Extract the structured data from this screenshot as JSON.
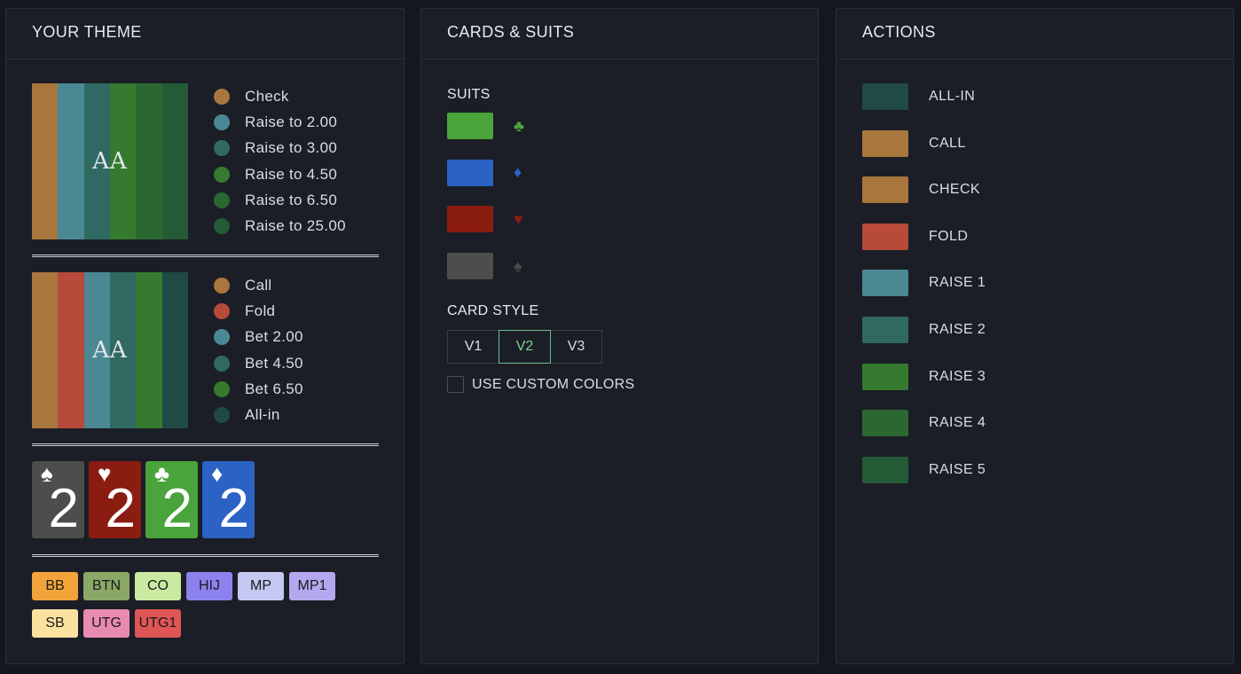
{
  "theme": {
    "title": "YOUR THEME",
    "hand_label": "AA",
    "legend1": [
      {
        "label": "Check",
        "color": "#a9763d"
      },
      {
        "label": "Raise to 2.00",
        "color": "#4a8894"
      },
      {
        "label": "Raise to 3.00",
        "color": "#2f6962"
      },
      {
        "label": "Raise to 4.50",
        "color": "#357a2e"
      },
      {
        "label": "Raise to 6.50",
        "color": "#2b6831"
      },
      {
        "label": "Raise to 25.00",
        "color": "#255a37"
      }
    ],
    "strip1": [
      "#a9763d",
      "#4a8894",
      "#2f6962",
      "#357a2e",
      "#2b6831",
      "#255a37"
    ],
    "legend2": [
      {
        "label": "Call",
        "color": "#a9763d"
      },
      {
        "label": "Fold",
        "color": "#b84a3a"
      },
      {
        "label": "Bet 2.00",
        "color": "#4a8894"
      },
      {
        "label": "Bet 4.50",
        "color": "#2f6962"
      },
      {
        "label": "Bet 6.50",
        "color": "#357a2e"
      },
      {
        "label": "All-in",
        "color": "#1f4a45"
      }
    ],
    "strip2": [
      "#a9763d",
      "#b84a3a",
      "#4a8894",
      "#2f6962",
      "#357a2e",
      "#1f4a45"
    ],
    "cards": [
      {
        "suit": "♠",
        "rank": "2",
        "color": "#4d4d4d",
        "icon": "spade-icon"
      },
      {
        "suit": "♥",
        "rank": "2",
        "color": "#8b1c12",
        "icon": "heart-icon"
      },
      {
        "suit": "♣",
        "rank": "2",
        "color": "#4aa43c",
        "icon": "club-icon"
      },
      {
        "suit": "♦",
        "rank": "2",
        "color": "#2b62c4",
        "icon": "diamond-icon"
      }
    ],
    "positions": [
      {
        "label": "BB",
        "color": "#f2a43a"
      },
      {
        "label": "BTN",
        "color": "#8aa866"
      },
      {
        "label": "CO",
        "color": "#c9eaa0"
      },
      {
        "label": "HIJ",
        "color": "#8b82ee"
      },
      {
        "label": "MP",
        "color": "#c5c8f3"
      },
      {
        "label": "MP1",
        "color": "#b5a7ee"
      },
      {
        "label": "SB",
        "color": "#fbe29f"
      },
      {
        "label": "UTG",
        "color": "#e98ab0"
      },
      {
        "label": "UTG1",
        "color": "#e05555"
      }
    ]
  },
  "cards_suits": {
    "title": "CARDS & SUITS",
    "suits_label": "SUITS",
    "suits": [
      {
        "glyph": "♣",
        "color": "#4aa43c",
        "icon": "club-icon"
      },
      {
        "glyph": "♦",
        "color": "#2b62c4",
        "icon": "diamond-icon"
      },
      {
        "glyph": "♥",
        "color": "#8b1c12",
        "icon": "heart-icon"
      },
      {
        "glyph": "♠",
        "color": "#4d4d4d",
        "icon": "spade-icon"
      }
    ],
    "card_style_label": "CARD STYLE",
    "card_styles": [
      "V1",
      "V2",
      "V3"
    ],
    "selected_style": "V2",
    "custom_colors_label": "USE CUSTOM COLORS",
    "custom_colors_checked": false
  },
  "actions": {
    "title": "ACTIONS",
    "items": [
      {
        "label": "ALL-IN",
        "color": "#1f4a45"
      },
      {
        "label": "CALL",
        "color": "#a9763d"
      },
      {
        "label": "CHECK",
        "color": "#a9763d"
      },
      {
        "label": "FOLD",
        "color": "#b84a3a"
      },
      {
        "label": "RAISE 1",
        "color": "#4a8894"
      },
      {
        "label": "RAISE 2",
        "color": "#2f6962"
      },
      {
        "label": "RAISE 3",
        "color": "#357a2e"
      },
      {
        "label": "RAISE 4",
        "color": "#2b6831"
      },
      {
        "label": "RAISE 5",
        "color": "#255a37"
      }
    ]
  }
}
